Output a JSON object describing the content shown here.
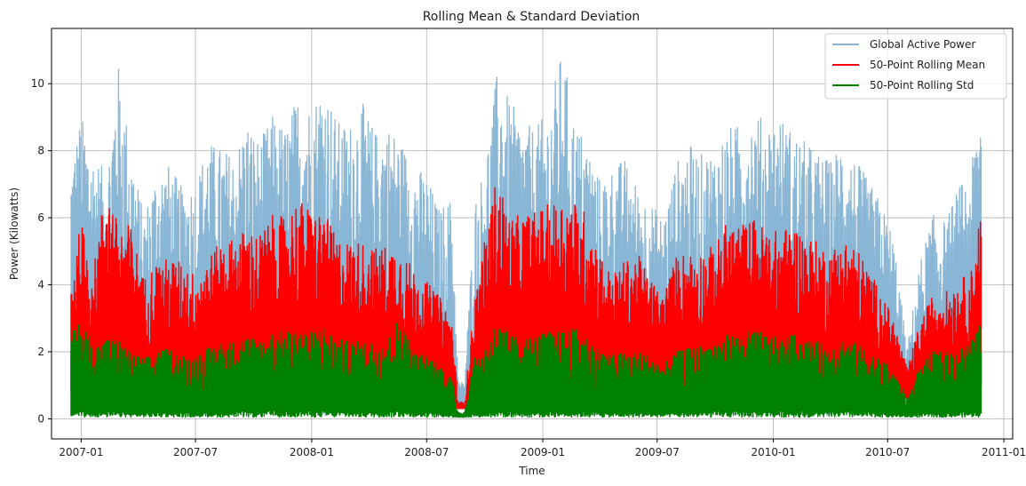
{
  "chart_data": {
    "type": "line",
    "title": "Rolling Mean & Standard Deviation",
    "xlabel": "Time",
    "ylabel": "Power (Kilowatts)",
    "xlim": [
      "2006-11-15",
      "2011-01-15"
    ],
    "ylim": [
      -0.6,
      11.65
    ],
    "x_ticks": [
      "2007-01",
      "2007-07",
      "2008-01",
      "2008-07",
      "2009-01",
      "2009-07",
      "2010-01",
      "2010-07",
      "2011-01"
    ],
    "y_ticks": [
      0,
      2,
      4,
      6,
      8,
      10
    ],
    "grid": true,
    "legend_position": "top-right",
    "x_range": [
      "2006-12-16",
      "2010-11-26"
    ],
    "series": [
      {
        "name": "Global Active Power",
        "color": "#8ab6d6",
        "x": [
          "2006-12-16",
          "2007-01-01",
          "2007-01-20",
          "2007-02-10",
          "2007-02-28",
          "2007-03-20",
          "2007-04-10",
          "2007-05-01",
          "2007-05-20",
          "2007-06-10",
          "2007-07-01",
          "2007-07-20",
          "2007-08-10",
          "2007-09-01",
          "2007-09-20",
          "2007-10-10",
          "2007-11-01",
          "2007-11-20",
          "2007-12-10",
          "2008-01-01",
          "2008-01-20",
          "2008-02-10",
          "2008-03-01",
          "2008-03-20",
          "2008-04-10",
          "2008-05-01",
          "2008-05-20",
          "2008-06-10",
          "2008-07-01",
          "2008-07-20",
          "2008-08-10",
          "2008-08-20",
          "2008-08-30",
          "2008-09-15",
          "2008-10-01",
          "2008-10-20",
          "2008-11-10",
          "2008-12-01",
          "2008-12-20",
          "2009-01-10",
          "2009-02-01",
          "2009-02-20",
          "2009-03-10",
          "2009-04-01",
          "2009-04-20",
          "2009-05-10",
          "2009-06-01",
          "2009-06-20",
          "2009-07-10",
          "2009-08-01",
          "2009-08-20",
          "2009-09-10",
          "2009-10-01",
          "2009-10-20",
          "2009-11-10",
          "2009-12-01",
          "2009-12-20",
          "2010-01-10",
          "2010-02-01",
          "2010-02-20",
          "2010-03-10",
          "2010-04-01",
          "2010-04-20",
          "2010-05-10",
          "2010-06-01",
          "2010-06-20",
          "2010-07-10",
          "2010-08-01",
          "2010-08-20",
          "2010-09-10",
          "2010-10-01",
          "2010-10-20",
          "2010-11-10",
          "2010-11-26"
        ],
        "upper": [
          7.8,
          9.1,
          8.0,
          7.3,
          10.7,
          8.2,
          6.1,
          7.5,
          7.6,
          6.9,
          7.1,
          8.3,
          8.1,
          7.9,
          9.0,
          8.3,
          9.1,
          8.7,
          9.7,
          9.4,
          10.2,
          8.9,
          8.8,
          9.5,
          8.6,
          8.8,
          8.4,
          7.6,
          7.3,
          6.3,
          6.6,
          1.1,
          1.1,
          6.5,
          7.6,
          10.3,
          9.5,
          8.8,
          8.7,
          9.2,
          11.1,
          8.9,
          8.4,
          7.2,
          7.5,
          7.8,
          6.9,
          6.5,
          6.0,
          7.7,
          8.2,
          7.9,
          8.1,
          8.7,
          8.8,
          9.2,
          8.9,
          9.1,
          8.6,
          8.3,
          8.0,
          7.7,
          8.4,
          7.8,
          7.1,
          6.5,
          5.5,
          2.1,
          4.6,
          6.1,
          5.9,
          6.9,
          7.4,
          9.8
        ],
        "lower": [
          0.1,
          0.1,
          0.1,
          0.1,
          0.1,
          0.1,
          0.1,
          0.1,
          0.1,
          0.1,
          0.1,
          0.1,
          0.1,
          0.1,
          0.1,
          0.1,
          0.1,
          0.1,
          0.1,
          0.1,
          0.1,
          0.1,
          0.1,
          0.1,
          0.1,
          0.1,
          0.1,
          0.1,
          0.1,
          0.1,
          0.1,
          0.3,
          0.3,
          0.1,
          0.1,
          0.1,
          0.1,
          0.1,
          0.1,
          0.1,
          0.1,
          0.1,
          0.1,
          0.1,
          0.1,
          0.1,
          0.1,
          0.1,
          0.1,
          0.1,
          0.1,
          0.1,
          0.1,
          0.1,
          0.1,
          0.1,
          0.1,
          0.1,
          0.1,
          0.1,
          0.1,
          0.1,
          0.1,
          0.1,
          0.1,
          0.1,
          0.1,
          0.1,
          0.1,
          0.1,
          0.1,
          0.1,
          0.1,
          0.1
        ]
      },
      {
        "name": "50-Point Rolling Mean",
        "color": "#ff0000",
        "x": [
          "2006-12-16",
          "2007-01-01",
          "2007-01-20",
          "2007-02-10",
          "2007-02-28",
          "2007-03-20",
          "2007-04-10",
          "2007-05-01",
          "2007-05-20",
          "2007-06-10",
          "2007-07-01",
          "2007-07-20",
          "2007-08-10",
          "2007-09-01",
          "2007-09-20",
          "2007-10-10",
          "2007-11-01",
          "2007-11-20",
          "2007-12-10",
          "2008-01-01",
          "2008-01-20",
          "2008-02-10",
          "2008-03-01",
          "2008-03-20",
          "2008-04-10",
          "2008-05-01",
          "2008-05-20",
          "2008-06-10",
          "2008-07-01",
          "2008-07-20",
          "2008-08-10",
          "2008-08-20",
          "2008-08-30",
          "2008-09-15",
          "2008-10-01",
          "2008-10-20",
          "2008-11-10",
          "2008-12-01",
          "2008-12-20",
          "2009-01-10",
          "2009-02-01",
          "2009-02-20",
          "2009-03-10",
          "2009-04-01",
          "2009-04-20",
          "2009-05-10",
          "2009-06-01",
          "2009-06-20",
          "2009-07-10",
          "2009-08-01",
          "2009-08-20",
          "2009-09-10",
          "2009-10-01",
          "2009-10-20",
          "2009-11-10",
          "2009-12-01",
          "2009-12-20",
          "2010-01-10",
          "2010-02-01",
          "2010-02-20",
          "2010-03-10",
          "2010-04-01",
          "2010-04-20",
          "2010-05-10",
          "2010-06-01",
          "2010-06-20",
          "2010-07-10",
          "2010-08-01",
          "2010-08-20",
          "2010-09-10",
          "2010-10-01",
          "2010-10-20",
          "2010-11-10",
          "2010-11-26"
        ],
        "upper": [
          4.3,
          5.9,
          4.4,
          7.2,
          5.8,
          5.8,
          4.2,
          4.7,
          4.8,
          4.7,
          4.3,
          4.8,
          5.3,
          5.4,
          5.7,
          5.5,
          6.1,
          6.0,
          6.6,
          6.2,
          6.2,
          5.4,
          5.3,
          5.3,
          5.1,
          5.2,
          5.1,
          4.5,
          4.1,
          3.7,
          3.0,
          0.5,
          0.5,
          3.6,
          5.3,
          7.3,
          6.0,
          6.1,
          6.2,
          6.4,
          6.6,
          6.5,
          6.2,
          5.0,
          4.3,
          4.7,
          4.9,
          4.2,
          3.7,
          4.9,
          5.0,
          5.0,
          5.2,
          5.9,
          5.8,
          6.0,
          5.7,
          5.6,
          5.8,
          5.5,
          5.3,
          5.0,
          5.4,
          5.2,
          4.5,
          3.8,
          3.0,
          1.5,
          2.8,
          3.7,
          3.8,
          4.1,
          4.4,
          6.4
        ],
        "lower": [
          0.6,
          0.7,
          0.7,
          0.7,
          0.7,
          0.7,
          0.6,
          0.6,
          0.6,
          0.6,
          0.6,
          0.6,
          0.6,
          0.6,
          0.6,
          0.6,
          0.6,
          0.6,
          0.6,
          0.6,
          0.6,
          0.6,
          0.6,
          0.6,
          0.6,
          0.6,
          0.6,
          0.6,
          0.6,
          0.6,
          0.4,
          0.3,
          0.3,
          0.5,
          0.6,
          0.6,
          0.6,
          0.6,
          0.6,
          0.6,
          0.6,
          0.6,
          0.6,
          0.6,
          0.6,
          0.6,
          0.6,
          0.6,
          0.6,
          0.6,
          0.6,
          0.6,
          0.6,
          0.6,
          0.6,
          0.6,
          0.6,
          0.6,
          0.6,
          0.6,
          0.6,
          0.6,
          0.6,
          0.6,
          0.6,
          0.6,
          0.6,
          0.6,
          0.6,
          0.6,
          0.6,
          0.6,
          0.6,
          0.6
        ]
      },
      {
        "name": "50-Point Rolling Std",
        "color": "#008000",
        "x": [
          "2006-12-16",
          "2007-01-01",
          "2007-01-20",
          "2007-02-10",
          "2007-02-28",
          "2007-03-20",
          "2007-04-10",
          "2007-05-01",
          "2007-05-20",
          "2007-06-10",
          "2007-07-01",
          "2007-07-20",
          "2007-08-10",
          "2007-09-01",
          "2007-09-20",
          "2007-10-10",
          "2007-11-01",
          "2007-11-20",
          "2007-12-10",
          "2008-01-01",
          "2008-01-20",
          "2008-02-10",
          "2008-03-01",
          "2008-03-20",
          "2008-04-10",
          "2008-05-01",
          "2008-05-20",
          "2008-06-10",
          "2008-07-01",
          "2008-07-20",
          "2008-08-10",
          "2008-08-20",
          "2008-08-30",
          "2008-09-15",
          "2008-10-01",
          "2008-10-20",
          "2008-11-10",
          "2008-12-01",
          "2008-12-20",
          "2009-01-10",
          "2009-02-01",
          "2009-02-20",
          "2009-03-10",
          "2009-04-01",
          "2009-04-20",
          "2009-05-10",
          "2009-06-01",
          "2009-06-20",
          "2009-07-10",
          "2009-08-01",
          "2009-08-20",
          "2009-09-10",
          "2009-10-01",
          "2009-10-20",
          "2009-11-10",
          "2009-12-01",
          "2009-12-20",
          "2010-01-10",
          "2010-02-01",
          "2010-02-20",
          "2010-03-10",
          "2010-04-01",
          "2010-04-20",
          "2010-05-10",
          "2010-06-01",
          "2010-06-20",
          "2010-07-10",
          "2010-08-01",
          "2010-08-20",
          "2010-09-10",
          "2010-10-01",
          "2010-10-20",
          "2010-11-10",
          "2010-11-26"
        ],
        "upper": [
          2.5,
          3.0,
          2.2,
          2.4,
          2.4,
          2.0,
          1.8,
          2.0,
          2.1,
          1.9,
          1.9,
          2.1,
          2.3,
          2.3,
          2.5,
          2.4,
          2.6,
          2.6,
          2.7,
          2.6,
          2.8,
          2.4,
          2.3,
          2.3,
          2.3,
          2.4,
          3.1,
          2.0,
          1.9,
          1.7,
          1.2,
          0.2,
          0.2,
          1.8,
          2.1,
          2.9,
          2.5,
          2.4,
          2.5,
          2.6,
          2.6,
          2.7,
          2.5,
          2.1,
          1.9,
          2.0,
          2.0,
          1.9,
          1.6,
          2.0,
          2.1,
          2.2,
          2.3,
          2.5,
          2.5,
          2.7,
          2.5,
          2.4,
          2.5,
          2.4,
          2.3,
          2.2,
          2.4,
          2.3,
          2.0,
          1.8,
          1.5,
          0.6,
          1.5,
          2.0,
          2.0,
          2.1,
          2.3,
          2.9
        ],
        "lower": [
          0.05,
          0.05,
          0.05,
          0.05,
          0.05,
          0.05,
          0.05,
          0.05,
          0.05,
          0.05,
          0.05,
          0.05,
          0.05,
          0.05,
          0.05,
          0.05,
          0.05,
          0.05,
          0.05,
          0.05,
          0.05,
          0.05,
          0.05,
          0.05,
          0.05,
          0.05,
          0.05,
          0.05,
          0.05,
          0.05,
          0.05,
          0.05,
          0.05,
          0.05,
          0.05,
          0.05,
          0.05,
          0.05,
          0.05,
          0.05,
          0.05,
          0.05,
          0.05,
          0.05,
          0.05,
          0.05,
          0.05,
          0.05,
          0.05,
          0.05,
          0.05,
          0.05,
          0.05,
          0.05,
          0.05,
          0.05,
          0.05,
          0.05,
          0.05,
          0.05,
          0.05,
          0.05,
          0.05,
          0.05,
          0.05,
          0.05,
          0.05,
          0.05,
          0.05,
          0.05,
          0.05,
          0.05,
          0.05,
          0.05
        ]
      }
    ]
  }
}
